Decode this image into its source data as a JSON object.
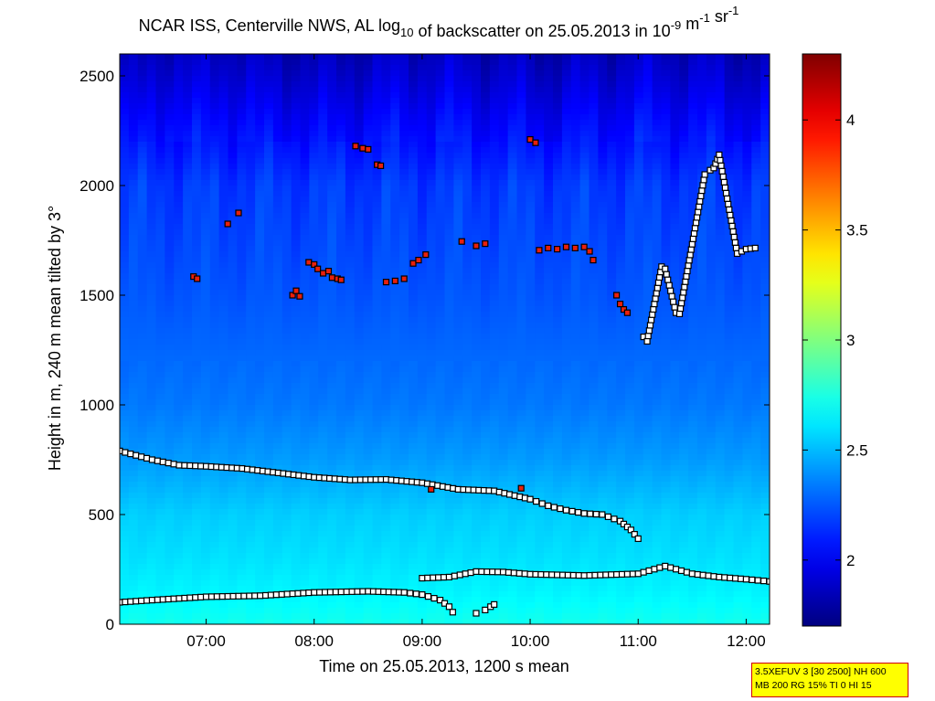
{
  "chart_data": {
    "type": "heatmap",
    "title": {
      "part1": "NCAR ISS, Centerville NWS, AL log",
      "sub": "10",
      "part2": " of backscatter on 25.05.2013 in 10",
      "sup1": "-9",
      "part3": " m",
      "sup2": "-1",
      "part4": " sr",
      "sup3": "-1"
    },
    "xlabel": "Time on 25.05.2013, 1200 s mean",
    "ylabel": "Height in m, 240 m mean tilted by 3°",
    "xlim": [
      "06:12",
      "12:13"
    ],
    "ylim": [
      0,
      2600
    ],
    "x_ticks": [
      "07:00",
      "08:00",
      "09:00",
      "10:00",
      "11:00",
      "12:00"
    ],
    "y_ticks": [
      0,
      500,
      1000,
      1500,
      2000,
      2500
    ],
    "colorbar": {
      "range": [
        1.7,
        4.3
      ],
      "ticks": [
        2,
        2.5,
        3,
        3.5,
        4
      ],
      "tick_labels": [
        "2",
        "2.5",
        "3",
        "3.5",
        "4"
      ],
      "colormap": "jet"
    },
    "field_profile": {
      "heights": [
        0,
        150,
        300,
        500,
        750,
        1000,
        1500,
        2000,
        2300,
        2600
      ],
      "values": [
        2.72,
        2.65,
        2.6,
        2.55,
        2.42,
        2.33,
        2.24,
        2.17,
        2.02,
        1.85
      ]
    },
    "series": [
      {
        "marker": "white-square",
        "segments": [
          {
            "x": [
              "06:12",
              "06:30",
              "06:45",
              "07:00",
              "07:20",
              "07:40",
              "08:00",
              "08:20",
              "08:40",
              "09:00",
              "09:20",
              "09:40",
              "10:00",
              "10:10",
              "10:20",
              "10:30",
              "10:40",
              "10:50",
              "10:56",
              "11:00"
            ],
            "y": [
              790,
              750,
              725,
              720,
              710,
              690,
              670,
              658,
              660,
              645,
              615,
              608,
              570,
              540,
              520,
              505,
              500,
              470,
              430,
              390
            ]
          },
          {
            "x": [
              "06:12",
              "06:30",
              "07:00",
              "07:30",
              "08:00",
              "08:30",
              "08:50",
              "09:00",
              "09:10",
              "09:15",
              "09:17"
            ],
            "y": [
              100,
              110,
              125,
              130,
              145,
              150,
              145,
              135,
              110,
              80,
              55
            ]
          },
          {
            "x": [
              "09:30",
              "09:35",
              "09:38",
              "09:40"
            ],
            "y": [
              50,
              65,
              80,
              90
            ]
          },
          {
            "x": [
              "09:00",
              "09:15",
              "09:30",
              "09:45",
              "10:00",
              "10:30",
              "11:00",
              "11:15",
              "11:30",
              "11:45",
              "12:00",
              "12:13"
            ],
            "y": [
              210,
              215,
              240,
              238,
              228,
              222,
              230,
              265,
              230,
              215,
              205,
              195
            ]
          },
          {
            "x": [
              "11:03",
              "11:05",
              "11:13",
              "11:15",
              "11:21",
              "11:23",
              "11:37",
              "11:40",
              "11:42",
              "11:45",
              "11:55",
              "12:00",
              "12:05"
            ],
            "y": [
              1310,
              1290,
              1630,
              1620,
              1420,
              1415,
              2050,
              2070,
              2080,
              2140,
              1690,
              1710,
              1715
            ]
          }
        ]
      },
      {
        "marker": "red-square",
        "segments": [
          {
            "x": [
              "06:53",
              "06:55",
              "07:12",
              "07:18",
              "07:48",
              "07:50",
              "07:52",
              "07:57",
              "08:00",
              "08:02",
              "08:05",
              "08:08",
              "08:10",
              "08:13",
              "08:15"
            ],
            "y": [
              1585,
              1575,
              1825,
              1875,
              1500,
              1520,
              1495,
              1650,
              1640,
              1620,
              1600,
              1610,
              1580,
              1575,
              1570
            ]
          },
          {
            "x": [
              "08:23",
              "08:27",
              "08:30",
              "08:35",
              "08:37",
              "08:40",
              "08:45",
              "08:50",
              "08:55",
              "08:58",
              "09:02"
            ],
            "y": [
              2180,
              2170,
              2165,
              2095,
              2090,
              1560,
              1565,
              1575,
              1645,
              1660,
              1685
            ]
          },
          {
            "x": [
              "09:22",
              "09:30",
              "09:35",
              "10:00",
              "10:03",
              "10:05",
              "10:10",
              "10:15",
              "10:20",
              "10:25",
              "10:30",
              "10:33",
              "10:35"
            ],
            "y": [
              1745,
              1725,
              1735,
              2210,
              2195,
              1705,
              1715,
              1710,
              1720,
              1715,
              1720,
              1700,
              1660
            ]
          },
          {
            "x": [
              "10:48",
              "10:50",
              "10:52",
              "10:54"
            ],
            "y": [
              1500,
              1460,
              1435,
              1420
            ]
          },
          {
            "x": [
              "09:05",
              "09:55"
            ],
            "y": [
              615,
              620
            ]
          }
        ]
      }
    ]
  },
  "info_box": {
    "line1": "3.5XEFUV 3 [30 2500] NH 600",
    "line2": "MB 200 RG 15% TI 0 HI 15"
  }
}
